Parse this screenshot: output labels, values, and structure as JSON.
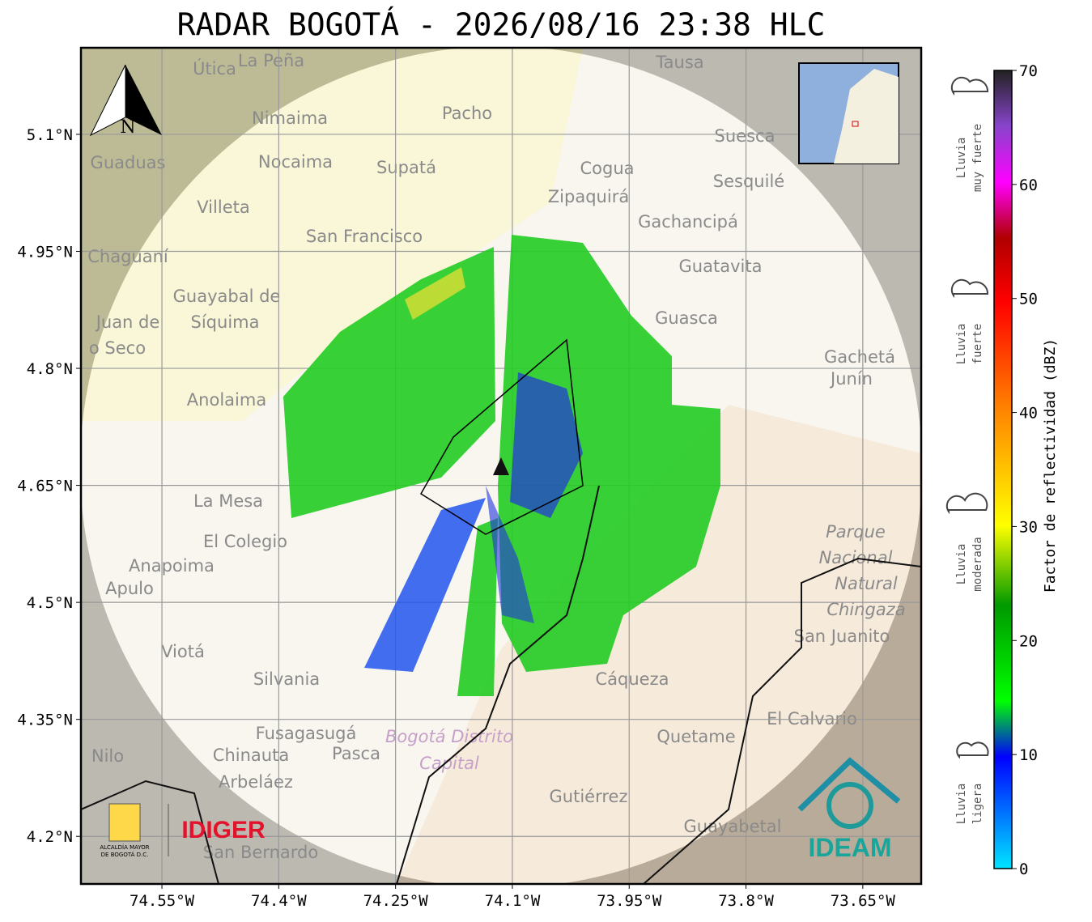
{
  "header": {
    "title": "RADAR BOGOTÁ - 2026/08/16 23:38 HLC"
  },
  "map": {
    "xlim": [
      -74.654,
      -73.575
    ],
    "ylim": [
      4.139,
      5.211
    ],
    "xticks": [
      {
        "value": -74.55,
        "label": "74.55°W"
      },
      {
        "value": -74.4,
        "label": "74.4°W"
      },
      {
        "value": -74.25,
        "label": "74.25°W"
      },
      {
        "value": -74.1,
        "label": "74.1°W"
      },
      {
        "value": -73.95,
        "label": "73.95°W"
      },
      {
        "value": -73.8,
        "label": "73.8°W"
      },
      {
        "value": -73.65,
        "label": "73.65°W"
      }
    ],
    "yticks": [
      {
        "value": 5.1,
        "label": "5.1°N"
      },
      {
        "value": 4.95,
        "label": "4.95°N"
      },
      {
        "value": 4.8,
        "label": "4.8°N"
      },
      {
        "value": 4.65,
        "label": "4.65°N"
      },
      {
        "value": 4.5,
        "label": "4.5°N"
      },
      {
        "value": 4.35,
        "label": "4.35°N"
      },
      {
        "value": 4.2,
        "label": "4.2°N"
      }
    ],
    "north_label": "N",
    "places": [
      "Útica",
      "La Peña",
      "Tausa",
      "Pacho",
      "Nimaima",
      "Suesca",
      "Guaduas",
      "Nocaima",
      "Supatá",
      "Cogua",
      "Sesquilé",
      "Zipaquirá",
      "Villeta",
      "Gachancipá",
      "San Francisco",
      "Chaguaní",
      "Guatavita",
      "Guayabal de",
      "Síquima",
      "Juan de",
      "o Seco",
      "Guasca",
      "Gachetá",
      "Junín",
      "Anolaima",
      "La Mesa",
      "El Colegio",
      "Parque",
      "Nacional",
      "Natural",
      "Chingaza",
      "Anapoima",
      "Apulo",
      "San Juanito",
      "Viotá",
      "Silvania",
      "Cáqueza",
      "El Calvario",
      "Fusagasugá",
      "Quetame",
      "Bogotá Distrito",
      "Capital",
      "Chinauta",
      "Pasca",
      "Nilo",
      "Arbeláez",
      "Gutiérrez",
      "Guayabetal",
      "San Bernardo"
    ]
  },
  "logos": {
    "alcaldia": [
      "ALCALDÍA MAYOR",
      "DE BOGOTÁ D.C."
    ],
    "idiger": "IDIGER",
    "ideam": "IDEAM"
  },
  "colorbar": {
    "label": "Factor de reflectividad (dBZ)",
    "lim": [
      0,
      70
    ],
    "ticks": [
      0,
      10,
      20,
      30,
      40,
      50,
      60,
      70
    ],
    "categories": [
      [
        "Lluvia",
        "muy fuerte"
      ],
      [
        "Lluvia",
        "fuerte"
      ],
      [
        "Lluvia",
        "moderada"
      ],
      [
        "Lluvia",
        "ligera"
      ]
    ]
  }
}
